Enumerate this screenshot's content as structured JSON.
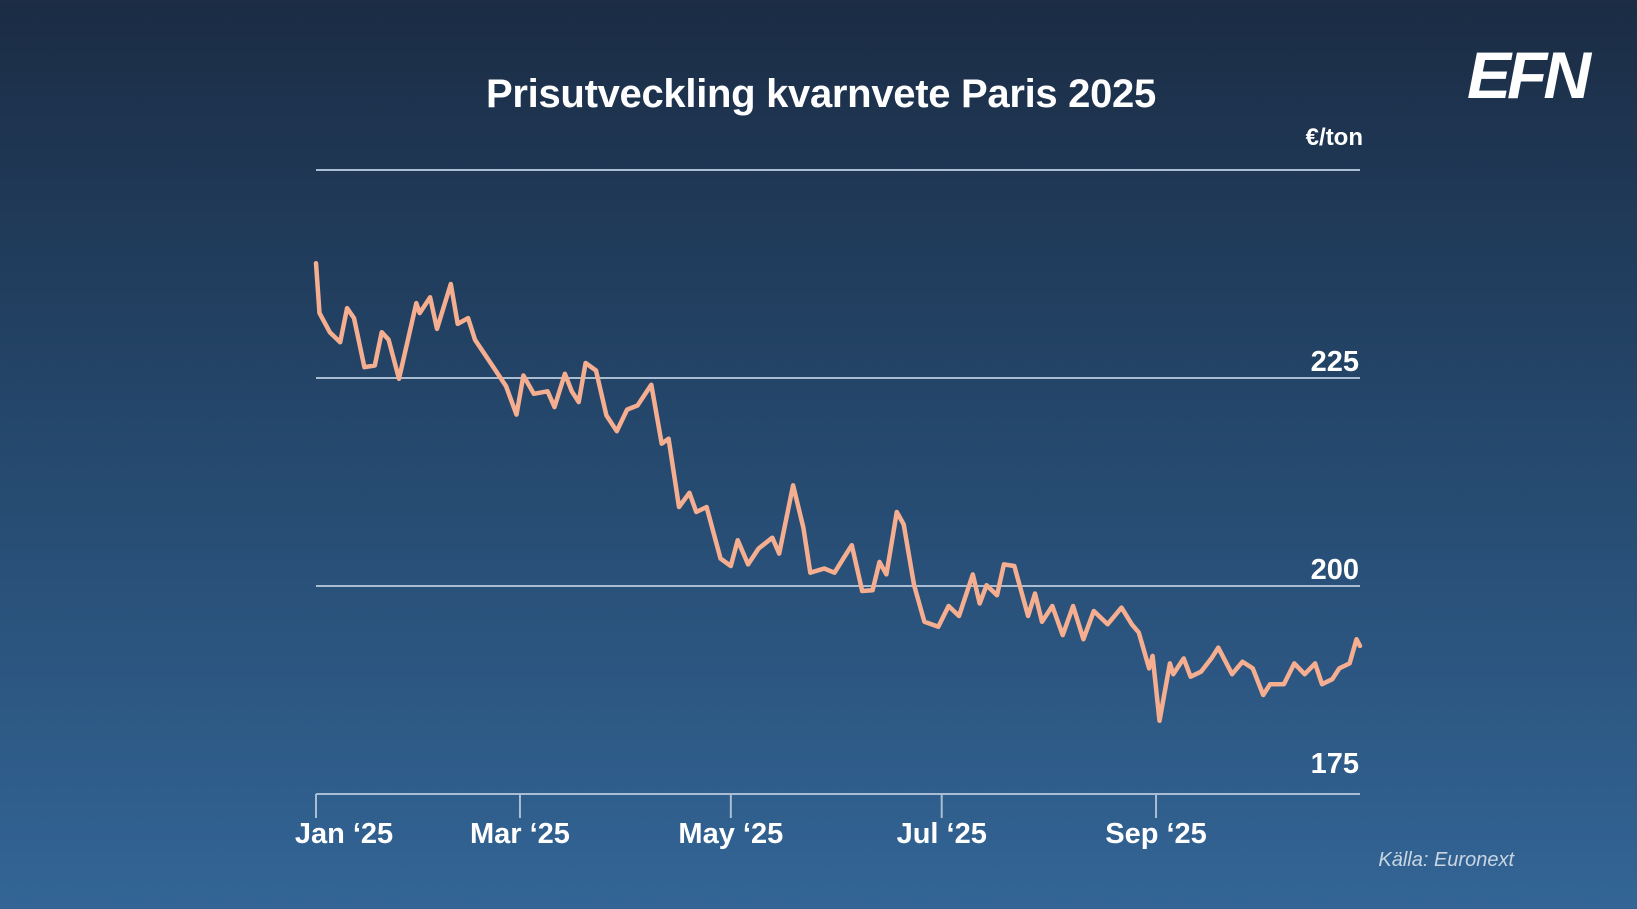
{
  "logo": {
    "text": "EFN"
  },
  "source": "Källa: Euronext",
  "chart_data": {
    "type": "line",
    "title": "Prisutveckling kvarnvete Paris 2025",
    "ylabel": "€/ton",
    "xlabel": "",
    "ylim": [
      175,
      250
    ],
    "xlim_days_since_jan1": [
      0,
      302
    ],
    "grid": true,
    "line_color": "#f5ae90",
    "y_ticks": [
      {
        "value": 175,
        "label": "175"
      },
      {
        "value": 200,
        "label": "200"
      },
      {
        "value": 225,
        "label": "225"
      },
      {
        "value": 250,
        "label": ""
      }
    ],
    "x_ticks": [
      {
        "day": 0,
        "label": "Jan ‘25"
      },
      {
        "day": 59,
        "label": "Mar ‘25"
      },
      {
        "day": 120,
        "label": "May ‘25"
      },
      {
        "day": 181,
        "label": "Jul ‘25"
      },
      {
        "day": 243,
        "label": "Sep ‘25"
      }
    ],
    "series": [
      {
        "name": "Kvarnvete Paris",
        "x_day": [
          0,
          1,
          4,
          7,
          9,
          11,
          14,
          17,
          19,
          21,
          24,
          29,
          30,
          33,
          35,
          39,
          41,
          44,
          46,
          51,
          55,
          58,
          60,
          63,
          67,
          69,
          72,
          74,
          76,
          78,
          81,
          84,
          87,
          90,
          93,
          97,
          100,
          102,
          105,
          108,
          110,
          113,
          117,
          120,
          122,
          125,
          128,
          132,
          134,
          138,
          141,
          143,
          147,
          150,
          153,
          155,
          158,
          161,
          163,
          165,
          168,
          170,
          173,
          176,
          180,
          183,
          186,
          190,
          192,
          194,
          197,
          199,
          202,
          206,
          208,
          210,
          213,
          216,
          219,
          222,
          225,
          229,
          233,
          236,
          238,
          241,
          242,
          244,
          247,
          248,
          251,
          253,
          256,
          259,
          261,
          265,
          268,
          271,
          274,
          276,
          280,
          283,
          286,
          289,
          291,
          294,
          296,
          299,
          301,
          302
        ],
        "values": [
          238.8,
          232.8,
          230.5,
          229.3,
          233.4,
          232.2,
          226.3,
          226.5,
          230.5,
          229.6,
          224.9,
          234,
          232.8,
          234.7,
          230.9,
          236.3,
          231.5,
          232.2,
          229.6,
          226.5,
          224,
          220.6,
          225.3,
          223.1,
          223.4,
          221.5,
          225.5,
          223.4,
          222.1,
          226.8,
          225.9,
          220.5,
          218.6,
          221.2,
          221.7,
          224.2,
          217.1,
          217.7,
          209.5,
          211.2,
          208.9,
          209.5,
          203.3,
          202.4,
          205.5,
          202.6,
          204.5,
          205.8,
          203.9,
          212.1,
          207,
          201.6,
          202.1,
          201.6,
          203.6,
          204.9,
          199.4,
          199.5,
          202.9,
          201.4,
          208.9,
          207.4,
          200.1,
          195.7,
          195.1,
          197.6,
          196.4,
          201.4,
          197.9,
          200.1,
          198.9,
          202.6,
          202.4,
          196.4,
          199.1,
          195.7,
          197.6,
          194.1,
          197.6,
          193.6,
          197,
          195.4,
          197.4,
          195.4,
          194.4,
          190.1,
          191.6,
          183.8,
          190.7,
          189.4,
          191.3,
          189.1,
          189.7,
          191.3,
          192.6,
          189.4,
          190.9,
          190.1,
          186.9,
          188.2,
          188.2,
          190.7,
          189.4,
          190.7,
          188.2,
          188.8,
          190.1,
          190.7,
          193.6,
          192.8
        ]
      }
    ]
  }
}
